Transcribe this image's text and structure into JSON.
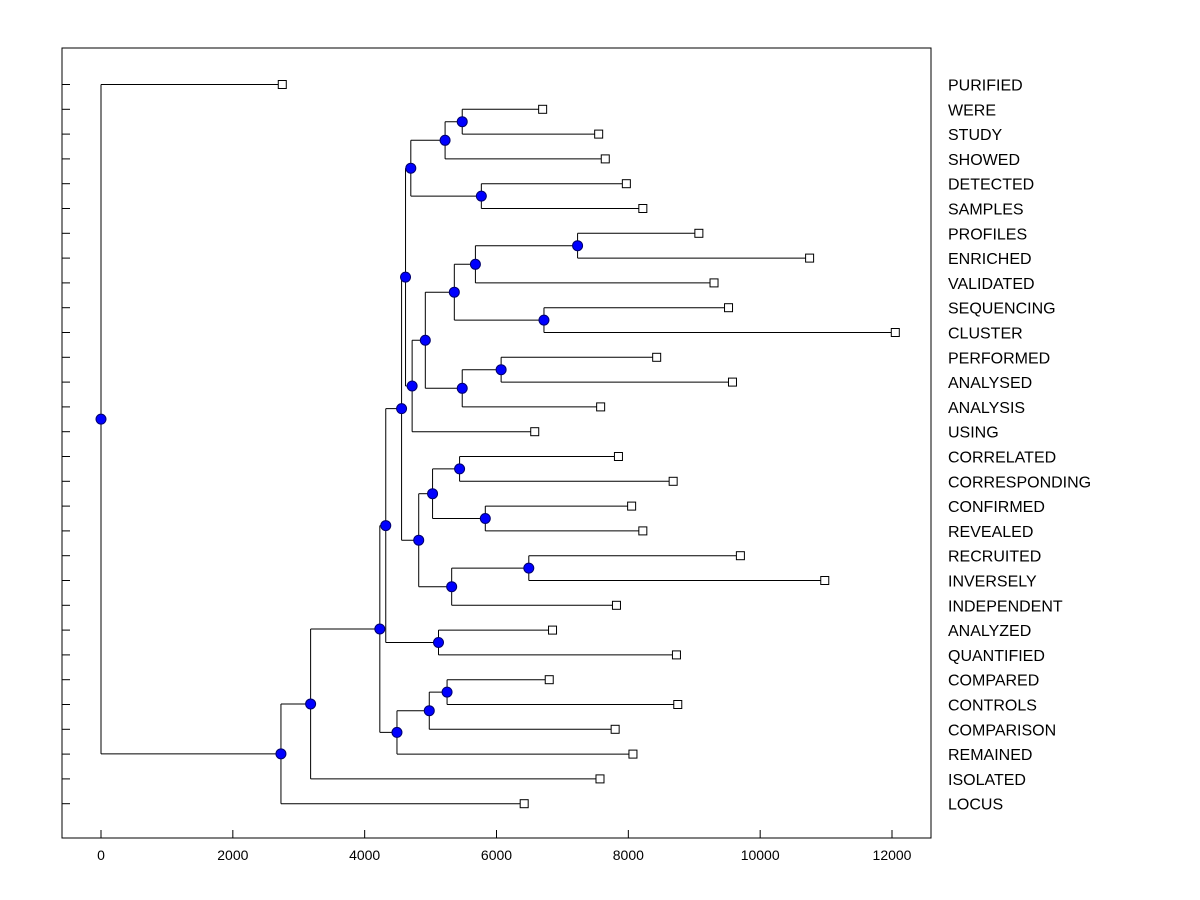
{
  "chart_data": {
    "type": "dendrogram",
    "orientation": "horizontal",
    "title": "",
    "xlabel": "",
    "ylabel": "",
    "xlim": [
      -600,
      12600
    ],
    "xticks": [
      0,
      2000,
      4000,
      6000,
      8000,
      10000,
      12000
    ],
    "xtick_labels": [
      "0",
      "2000",
      "4000",
      "6000",
      "8000",
      "10000",
      "12000"
    ],
    "leaf_order": [
      "PURIFIED",
      "WERE",
      "STUDY",
      "SHOWED",
      "DETECTED",
      "SAMPLES",
      "PROFILES",
      "ENRICHED",
      "VALIDATED",
      "SEQUENCING",
      "CLUSTER",
      "PERFORMED",
      "ANALYSED",
      "ANALYSIS",
      "USING",
      "CORRELATED",
      "CORRESPONDING",
      "CONFIRMED",
      "REVEALED",
      "RECRUITED",
      "INVERSELY",
      "INDEPENDENT",
      "ANALYZED",
      "QUANTIFIED",
      "COMPARED",
      "CONTROLS",
      "COMPARISON",
      "REMAINED",
      "ISOLATED",
      "LOCUS"
    ],
    "leaves": [
      {
        "id": "PURIFIED",
        "label": "PURIFIED",
        "value": 2750
      },
      {
        "id": "WERE",
        "label": "WERE",
        "value": 6700
      },
      {
        "id": "STUDY",
        "label": "STUDY",
        "value": 7550
      },
      {
        "id": "SHOWED",
        "label": "SHOWED",
        "value": 7650
      },
      {
        "id": "DETECTED",
        "label": "DETECTED",
        "value": 7970
      },
      {
        "id": "SAMPLES",
        "label": "SAMPLES",
        "value": 8220
      },
      {
        "id": "PROFILES",
        "label": "PROFILES",
        "value": 9070
      },
      {
        "id": "ENRICHED",
        "label": "ENRICHED",
        "value": 10750
      },
      {
        "id": "VALIDATED",
        "label": "VALIDATED",
        "value": 9300
      },
      {
        "id": "SEQUENCING",
        "label": "SEQUENCING",
        "value": 9520
      },
      {
        "id": "CLUSTER",
        "label": "CLUSTER",
        "value": 12050
      },
      {
        "id": "PERFORMED",
        "label": "PERFORMED",
        "value": 8430
      },
      {
        "id": "ANALYSED",
        "label": "ANALYSED",
        "value": 9580
      },
      {
        "id": "ANALYSIS",
        "label": "ANALYSIS",
        "value": 7580
      },
      {
        "id": "USING",
        "label": "USING",
        "value": 6580
      },
      {
        "id": "CORRELATED",
        "label": "CORRELATED",
        "value": 7850
      },
      {
        "id": "CORRESPONDING",
        "label": "CORRESPONDING",
        "value": 8680
      },
      {
        "id": "CONFIRMED",
        "label": "CONFIRMED",
        "value": 8050
      },
      {
        "id": "REVEALED",
        "label": "REVEALED",
        "value": 8220
      },
      {
        "id": "RECRUITED",
        "label": "RECRUITED",
        "value": 9700
      },
      {
        "id": "INVERSELY",
        "label": "INVERSELY",
        "value": 10980
      },
      {
        "id": "INDEPENDENT",
        "label": "INDEPENDENT",
        "value": 7820
      },
      {
        "id": "ANALYZED",
        "label": "ANALYZED",
        "value": 6850
      },
      {
        "id": "QUANTIFIED",
        "label": "QUANTIFIED",
        "value": 8730
      },
      {
        "id": "COMPARED",
        "label": "COMPARED",
        "value": 6800
      },
      {
        "id": "CONTROLS",
        "label": "CONTROLS",
        "value": 8750
      },
      {
        "id": "COMPARISON",
        "label": "COMPARISON",
        "value": 7800
      },
      {
        "id": "REMAINED",
        "label": "REMAINED",
        "value": 8070
      },
      {
        "id": "ISOLATED",
        "label": "ISOLATED",
        "value": 7570
      },
      {
        "id": "LOCUS",
        "label": "LOCUS",
        "value": 6420
      }
    ],
    "merges": [
      {
        "id": "n_were_study",
        "value": 5480,
        "children": [
          "WERE",
          "STUDY"
        ]
      },
      {
        "id": "n_showed",
        "value": 5220,
        "children": [
          "n_were_study",
          "SHOWED"
        ]
      },
      {
        "id": "n_detected_samples",
        "value": 5770,
        "children": [
          "DETECTED",
          "SAMPLES"
        ]
      },
      {
        "id": "n_top",
        "value": 4700,
        "children": [
          "n_showed",
          "n_detected_samples"
        ]
      },
      {
        "id": "n_profiles_enriched",
        "value": 7230,
        "children": [
          "PROFILES",
          "ENRICHED"
        ]
      },
      {
        "id": "n_validated",
        "value": 5680,
        "children": [
          "n_profiles_enriched",
          "VALIDATED"
        ]
      },
      {
        "id": "n_sequencing_cluster",
        "value": 6720,
        "children": [
          "SEQUENCING",
          "CLUSTER"
        ]
      },
      {
        "id": "n_enr_clu",
        "value": 5360,
        "children": [
          "n_validated",
          "n_sequencing_cluster"
        ]
      },
      {
        "id": "n_performed_analysed",
        "value": 6070,
        "children": [
          "PERFORMED",
          "ANALYSED"
        ]
      },
      {
        "id": "n_analysis",
        "value": 5480,
        "children": [
          "n_performed_analysed",
          "ANALYSIS"
        ]
      },
      {
        "id": "n_mid",
        "value": 4920,
        "children": [
          "n_enr_clu",
          "n_analysis"
        ]
      },
      {
        "id": "n_using",
        "value": 4720,
        "children": [
          "n_mid",
          "USING"
        ]
      },
      {
        "id": "n_upper",
        "value": 4620,
        "children": [
          "n_top",
          "n_using"
        ]
      },
      {
        "id": "n_correlated",
        "value": 5440,
        "children": [
          "CORRELATED",
          "CORRESPONDING"
        ]
      },
      {
        "id": "n_confirmed",
        "value": 5830,
        "children": [
          "CONFIRMED",
          "REVEALED"
        ]
      },
      {
        "id": "n_corr_conf",
        "value": 5030,
        "children": [
          "n_correlated",
          "n_confirmed"
        ]
      },
      {
        "id": "n_recruited",
        "value": 6490,
        "children": [
          "RECRUITED",
          "INVERSELY"
        ]
      },
      {
        "id": "n_independent",
        "value": 5320,
        "children": [
          "n_recruited",
          "INDEPENDENT"
        ]
      },
      {
        "id": "n_lower_mid",
        "value": 4820,
        "children": [
          "n_corr_conf",
          "n_independent"
        ]
      },
      {
        "id": "n_upper_all",
        "value": 4560,
        "children": [
          "n_upper",
          "n_lower_mid"
        ]
      },
      {
        "id": "n_analyzed",
        "value": 5120,
        "children": [
          "ANALYZED",
          "QUANTIFIED"
        ]
      },
      {
        "id": "n_big",
        "value": 4320,
        "children": [
          "n_upper_all",
          "n_analyzed"
        ]
      },
      {
        "id": "n_compared",
        "value": 5250,
        "children": [
          "COMPARED",
          "CONTROLS"
        ]
      },
      {
        "id": "n_comparison",
        "value": 4980,
        "children": [
          "n_compared",
          "COMPARISON"
        ]
      },
      {
        "id": "n_remained",
        "value": 4490,
        "children": [
          "n_comparison",
          "REMAINED"
        ]
      },
      {
        "id": "n_cluster_b",
        "value": 4230,
        "children": [
          "n_big",
          "n_remained"
        ]
      },
      {
        "id": "n_isolated",
        "value": 3180,
        "children": [
          "n_cluster_b",
          "ISOLATED"
        ]
      },
      {
        "id": "n_locus",
        "value": 2730,
        "children": [
          "n_isolated",
          "LOCUS"
        ]
      },
      {
        "id": "root",
        "value": 0,
        "children": [
          "PURIFIED",
          "n_locus"
        ]
      }
    ],
    "colors": {
      "node_fill": "#0000ff",
      "node_stroke": "#00006e",
      "line": "#000000",
      "leaf_fill": "#ffffff",
      "background": "#ffffff"
    },
    "grid": false,
    "legend": "none"
  }
}
